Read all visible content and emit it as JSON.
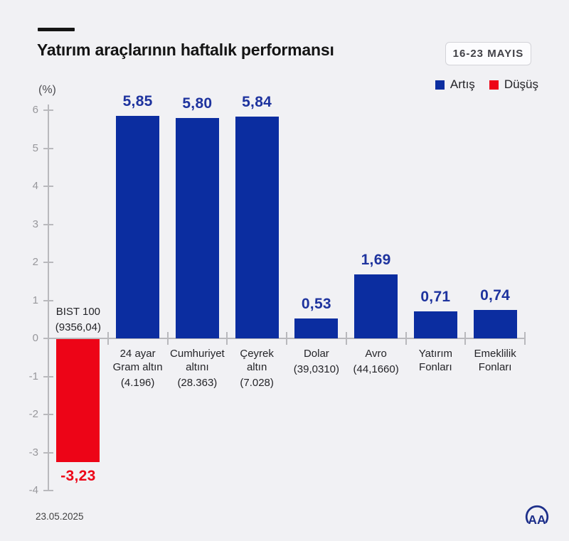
{
  "page": {
    "background": "#f1f1f4"
  },
  "header": {
    "title": "Yatırım araçlarının haftalık performansı",
    "date_badge": "16-23 MAYIS"
  },
  "chart_data": {
    "type": "bar",
    "title": "Yatırım araçlarının haftalık performansı",
    "unit_label": "(%)",
    "xlabel": "",
    "ylabel": "%",
    "ylim": [
      -4,
      6
    ],
    "yticks": [
      6,
      5,
      4,
      3,
      2,
      1,
      0,
      -1,
      -2,
      -3,
      -4
    ],
    "grid": false,
    "legend": {
      "position": "top-right",
      "entries": [
        {
          "label": "Artış",
          "color": "#0b2da0"
        },
        {
          "label": "Düşüş",
          "color": "#ed0417"
        }
      ]
    },
    "categories": [
      {
        "name_lines": [
          "BIST 100"
        ],
        "detail": "(9356,04)",
        "value": -3.23,
        "value_label": "-3,23",
        "direction": "down",
        "label_position": "above"
      },
      {
        "name_lines": [
          "24 ayar",
          "Gram altın"
        ],
        "detail": "(4.196)",
        "value": 5.85,
        "value_label": "5,85",
        "direction": "up",
        "label_position": "below"
      },
      {
        "name_lines": [
          "Cumhuriyet",
          "altını"
        ],
        "detail": "(28.363)",
        "value": 5.8,
        "value_label": "5,80",
        "direction": "up",
        "label_position": "below"
      },
      {
        "name_lines": [
          "Çeyrek",
          "altın"
        ],
        "detail": "(7.028)",
        "value": 5.84,
        "value_label": "5,84",
        "direction": "up",
        "label_position": "below"
      },
      {
        "name_lines": [
          "Dolar"
        ],
        "detail": "(39,0310)",
        "value": 0.53,
        "value_label": "0,53",
        "direction": "up",
        "label_position": "below"
      },
      {
        "name_lines": [
          "Avro"
        ],
        "detail": "(44,1660)",
        "value": 1.69,
        "value_label": "1,69",
        "direction": "up",
        "label_position": "below"
      },
      {
        "name_lines": [
          "Yatırım",
          "Fonları"
        ],
        "detail": "",
        "value": 0.71,
        "value_label": "0,71",
        "direction": "up",
        "label_position": "below"
      },
      {
        "name_lines": [
          "Emeklilik",
          "Fonları"
        ],
        "detail": "",
        "value": 0.74,
        "value_label": "0,74",
        "direction": "up",
        "label_position": "below"
      }
    ],
    "colors": {
      "up": "#0b2da0",
      "down": "#ed0417",
      "value_label_up": "#1e339e",
      "value_label_down": "#ed0417",
      "axis": "#b9b9bd",
      "tick_label": "#97979b",
      "category_label": "#242428"
    }
  },
  "footer": {
    "date": "23.05.2025",
    "logo_text": "AA"
  }
}
